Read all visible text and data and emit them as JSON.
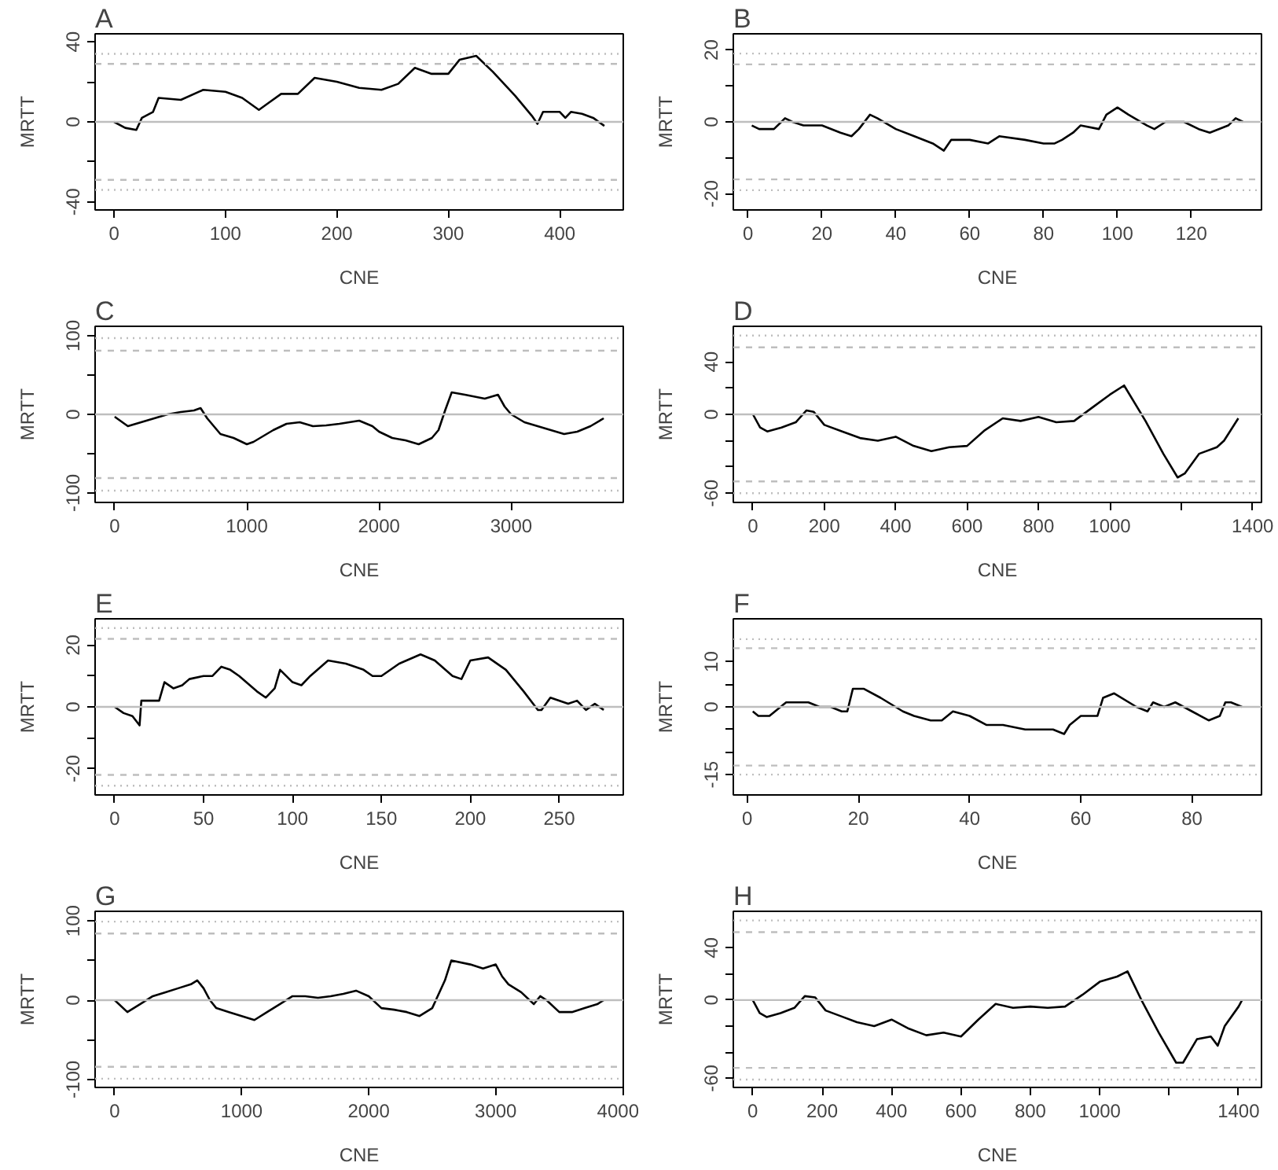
{
  "chart_data": [
    {
      "type": "line",
      "title": "A",
      "xlabel": "CNE",
      "ylabel": "MRTT",
      "xlim": [
        -17,
        457
      ],
      "ylim": [
        -44,
        44
      ],
      "xticks": [
        0,
        100,
        200,
        300,
        400
      ],
      "yticks": [
        -40,
        {
          "value": -20,
          "label": null
        },
        0,
        {
          "value": 20,
          "label": null
        },
        40
      ],
      "grid": false,
      "series": [
        {
          "color": "#000000",
          "x": [
            0,
            10,
            20,
            25,
            35,
            40,
            60,
            80,
            100,
            115,
            130,
            140,
            150,
            165,
            180,
            200,
            220,
            240,
            255,
            270,
            285,
            300,
            310,
            325,
            340,
            360,
            375,
            380,
            385,
            400,
            405,
            410,
            420,
            430,
            440
          ],
          "values": [
            0,
            -3,
            -4,
            2,
            5,
            12,
            11,
            16,
            15,
            12,
            6,
            10,
            14,
            14,
            22,
            20,
            17,
            16,
            19,
            27,
            24,
            24,
            31,
            33,
            25,
            13,
            3,
            -1,
            5,
            5,
            2,
            5,
            4,
            2,
            -2
          ]
        }
      ],
      "ref_lines": [
        {
          "axis": "y",
          "value": 0,
          "color": "#bebebe",
          "line_style": "solid"
        },
        {
          "axis": "y",
          "value": 29,
          "color": "#bebebe",
          "line_style": "dashed"
        },
        {
          "axis": "y",
          "value": -29,
          "color": "#bebebe",
          "line_style": "dashed"
        },
        {
          "axis": "y",
          "value": 34,
          "color": "#bebebe",
          "line_style": "dotted"
        },
        {
          "axis": "y",
          "value": -34,
          "color": "#bebebe",
          "line_style": "dotted"
        }
      ]
    },
    {
      "type": "line",
      "title": "B",
      "xlabel": "CNE",
      "ylabel": "MRTT",
      "xlim": [
        -4,
        139
      ],
      "ylim": [
        -24.5,
        24.5
      ],
      "xticks": [
        0,
        20,
        40,
        60,
        80,
        100,
        120
      ],
      "yticks": [
        -20,
        {
          "value": -10,
          "label": null
        },
        0,
        {
          "value": 10,
          "label": null
        },
        20
      ],
      "grid": false,
      "series": [
        {
          "color": "#000000",
          "x": [
            1,
            3,
            7,
            9,
            10,
            12,
            15,
            20,
            25,
            28,
            30,
            33,
            35,
            40,
            45,
            50,
            53,
            55,
            60,
            65,
            68,
            75,
            80,
            83,
            85,
            88,
            90,
            95,
            97,
            100,
            103,
            108,
            110,
            113,
            118,
            122,
            125,
            130,
            132,
            134
          ],
          "values": [
            -1,
            -2,
            -2,
            0,
            1,
            0,
            -1,
            -1,
            -3,
            -4,
            -2,
            2,
            1,
            -2,
            -4,
            -6,
            -8,
            -5,
            -5,
            -6,
            -4,
            -5,
            -6,
            -6,
            -5,
            -3,
            -1,
            -2,
            2,
            4,
            2,
            -1,
            -2,
            0,
            0,
            -2,
            -3,
            -1,
            1,
            0
          ]
        }
      ],
      "ref_lines": [
        {
          "axis": "y",
          "value": 0,
          "color": "#bebebe",
          "line_style": "solid"
        },
        {
          "axis": "y",
          "value": 16,
          "color": "#bebebe",
          "line_style": "dashed"
        },
        {
          "axis": "y",
          "value": -16,
          "color": "#bebebe",
          "line_style": "dashed"
        },
        {
          "axis": "y",
          "value": 19,
          "color": "#bebebe",
          "line_style": "dotted"
        },
        {
          "axis": "y",
          "value": -19,
          "color": "#bebebe",
          "line_style": "dotted"
        }
      ]
    },
    {
      "type": "line",
      "title": "C",
      "xlabel": "CNE",
      "ylabel": "MRTT",
      "xlim": [
        -148,
        3848
      ],
      "ylim": [
        -112,
        112
      ],
      "xticks": [
        0,
        1000,
        2000,
        3000
      ],
      "yticks": [
        -100,
        {
          "value": -50,
          "label": null
        },
        0,
        {
          "value": 50,
          "label": null
        },
        100
      ],
      "grid": false,
      "series": [
        {
          "color": "#000000",
          "x": [
            0,
            100,
            200,
            300,
            400,
            500,
            600,
            650,
            700,
            800,
            900,
            1000,
            1050,
            1100,
            1200,
            1300,
            1400,
            1500,
            1600,
            1700,
            1850,
            1950,
            2000,
            2100,
            2200,
            2300,
            2400,
            2450,
            2500,
            2550,
            2650,
            2800,
            2900,
            2950,
            3000,
            3100,
            3200,
            3300,
            3400,
            3500,
            3600,
            3700
          ],
          "values": [
            -3,
            -15,
            -10,
            -5,
            0,
            3,
            5,
            8,
            -5,
            -25,
            -30,
            -38,
            -35,
            -30,
            -20,
            -12,
            -10,
            -15,
            -14,
            -12,
            -8,
            -15,
            -22,
            -30,
            -33,
            -38,
            -30,
            -20,
            5,
            28,
            25,
            20,
            25,
            10,
            0,
            -10,
            -15,
            -20,
            -25,
            -22,
            -15,
            -5
          ]
        }
      ],
      "ref_lines": [
        {
          "axis": "y",
          "value": 0,
          "color": "#bebebe",
          "line_style": "solid"
        },
        {
          "axis": "y",
          "value": 81,
          "color": "#bebebe",
          "line_style": "dashed"
        },
        {
          "axis": "y",
          "value": -81,
          "color": "#bebebe",
          "line_style": "dashed"
        },
        {
          "axis": "y",
          "value": 97,
          "color": "#bebebe",
          "line_style": "dotted"
        },
        {
          "axis": "y",
          "value": -97,
          "color": "#bebebe",
          "line_style": "dotted"
        }
      ]
    },
    {
      "type": "line",
      "title": "D",
      "xlabel": "CNE",
      "ylabel": "MRTT",
      "xlim": [
        -55,
        1425
      ],
      "ylim": [
        -67,
        67
      ],
      "xticks": [
        0,
        200,
        400,
        600,
        800,
        1000,
        {
          "value": 1200,
          "label": null
        },
        1400
      ],
      "yticks": [
        -60,
        {
          "value": -40,
          "label": null
        },
        {
          "value": -20,
          "label": null
        },
        0,
        {
          "value": 20,
          "label": null
        },
        40
      ],
      "grid": false,
      "series": [
        {
          "color": "#000000",
          "x": [
            0,
            20,
            40,
            80,
            120,
            150,
            170,
            200,
            250,
            300,
            350,
            400,
            450,
            500,
            550,
            600,
            650,
            700,
            750,
            800,
            850,
            900,
            950,
            1000,
            1040,
            1100,
            1150,
            1190,
            1210,
            1250,
            1300,
            1320,
            1360
          ],
          "values": [
            0,
            -10,
            -13,
            -10,
            -6,
            3,
            2,
            -8,
            -13,
            -18,
            -20,
            -17,
            -24,
            -28,
            -25,
            -24,
            -12,
            -3,
            -5,
            -2,
            -6,
            -5,
            5,
            15,
            22,
            -5,
            -30,
            -48,
            -45,
            -30,
            -25,
            -20,
            -3
          ]
        }
      ],
      "ref_lines": [
        {
          "axis": "y",
          "value": 0,
          "color": "#bebebe",
          "line_style": "solid"
        },
        {
          "axis": "y",
          "value": 51,
          "color": "#bebebe",
          "line_style": "dashed"
        },
        {
          "axis": "y",
          "value": -51,
          "color": "#bebebe",
          "line_style": "dashed"
        },
        {
          "axis": "y",
          "value": 60,
          "color": "#bebebe",
          "line_style": "dotted"
        },
        {
          "axis": "y",
          "value": -60,
          "color": "#bebebe",
          "line_style": "dotted"
        }
      ]
    },
    {
      "type": "line",
      "title": "E",
      "xlabel": "CNE",
      "ylabel": "MRTT",
      "xlim": [
        -11,
        286
      ],
      "ylim": [
        -28.5,
        28.5
      ],
      "xticks": [
        0,
        50,
        100,
        150,
        200,
        250
      ],
      "yticks": [
        -20,
        {
          "value": -10,
          "label": null
        },
        0,
        {
          "value": 10,
          "label": null
        },
        20
      ],
      "grid": false,
      "series": [
        {
          "color": "#000000",
          "x": [
            0,
            5,
            10,
            14,
            15,
            20,
            25,
            28,
            33,
            38,
            42,
            50,
            55,
            60,
            65,
            70,
            80,
            85,
            90,
            93,
            100,
            105,
            110,
            120,
            130,
            140,
            145,
            150,
            160,
            172,
            180,
            190,
            195,
            200,
            210,
            220,
            230,
            238,
            240,
            245,
            255,
            260,
            265,
            270,
            275
          ],
          "values": [
            0,
            -2,
            -3,
            -6,
            2,
            2,
            2,
            8,
            6,
            7,
            9,
            10,
            10,
            13,
            12,
            10,
            5,
            3,
            6,
            12,
            8,
            7,
            10,
            15,
            14,
            12,
            10,
            10,
            14,
            17,
            15,
            10,
            9,
            15,
            16,
            12,
            5,
            -1,
            -1,
            3,
            1,
            2,
            -1,
            1,
            -1
          ]
        }
      ],
      "ref_lines": [
        {
          "axis": "y",
          "value": 0,
          "color": "#bebebe",
          "line_style": "solid"
        },
        {
          "axis": "y",
          "value": 22,
          "color": "#bebebe",
          "line_style": "dashed"
        },
        {
          "axis": "y",
          "value": -22,
          "color": "#bebebe",
          "line_style": "dashed"
        },
        {
          "axis": "y",
          "value": 25.5,
          "color": "#bebebe",
          "line_style": "dotted"
        },
        {
          "axis": "y",
          "value": -25.5,
          "color": "#bebebe",
          "line_style": "dotted"
        }
      ]
    },
    {
      "type": "line",
      "title": "F",
      "xlabel": "CNE",
      "ylabel": "MRTT",
      "xlim": [
        -2.5,
        92.5
      ],
      "ylim": [
        -19.5,
        19.5
      ],
      "xticks": [
        0,
        20,
        40,
        60,
        80
      ],
      "yticks": [
        -15,
        {
          "value": -10,
          "label": null
        },
        {
          "value": -5,
          "label": null
        },
        0,
        {
          "value": 5,
          "label": null
        },
        10
      ],
      "grid": false,
      "series": [
        {
          "color": "#000000",
          "x": [
            1,
            2,
            4,
            5,
            7,
            9,
            11,
            13,
            15,
            17,
            18,
            19,
            21,
            24,
            28,
            30,
            33,
            35,
            37,
            40,
            43,
            46,
            50,
            55,
            57,
            58,
            60,
            63,
            64,
            66,
            70,
            72,
            73,
            75,
            77,
            80,
            83,
            85,
            86,
            87,
            89
          ],
          "values": [
            -1,
            -2,
            -2,
            -1,
            1,
            1,
            1,
            0,
            0,
            -1,
            -1,
            4,
            4,
            2,
            -1,
            -2,
            -3,
            -3,
            -1,
            -2,
            -4,
            -4,
            -5,
            -5,
            -6,
            -4,
            -2,
            -2,
            2,
            3,
            0,
            -1,
            1,
            0,
            1,
            -1,
            -3,
            -2,
            1,
            1,
            0
          ]
        }
      ],
      "ref_lines": [
        {
          "axis": "y",
          "value": 0,
          "color": "#bebebe",
          "line_style": "solid"
        },
        {
          "axis": "y",
          "value": 13,
          "color": "#bebebe",
          "line_style": "dashed"
        },
        {
          "axis": "y",
          "value": -13,
          "color": "#bebebe",
          "line_style": "dashed"
        },
        {
          "axis": "y",
          "value": 15,
          "color": "#bebebe",
          "line_style": "dotted"
        },
        {
          "axis": "y",
          "value": -15,
          "color": "#bebebe",
          "line_style": "dotted"
        }
      ]
    },
    {
      "type": "line",
      "title": "G",
      "xlabel": "CNE",
      "ylabel": "MRTT",
      "xlim": [
        -154,
        4004
      ],
      "ylim": [
        -110,
        112
      ],
      "xticks": [
        0,
        1000,
        2000,
        3000,
        4000
      ],
      "yticks": [
        -100,
        {
          "value": -50,
          "label": null
        },
        0,
        {
          "value": 50,
          "label": null
        },
        100
      ],
      "grid": false,
      "series": [
        {
          "color": "#000000",
          "x": [
            0,
            100,
            200,
            300,
            400,
            500,
            600,
            650,
            700,
            750,
            800,
            900,
            1000,
            1100,
            1200,
            1300,
            1400,
            1500,
            1600,
            1700,
            1800,
            1900,
            2000,
            2100,
            2200,
            2300,
            2400,
            2500,
            2600,
            2650,
            2800,
            2900,
            3000,
            3050,
            3100,
            3200,
            3300,
            3350,
            3400,
            3500,
            3600,
            3700,
            3800,
            3850
          ],
          "values": [
            0,
            -15,
            -5,
            5,
            10,
            15,
            20,
            25,
            15,
            0,
            -10,
            -15,
            -20,
            -25,
            -15,
            -5,
            5,
            5,
            3,
            5,
            8,
            12,
            5,
            -10,
            -12,
            -15,
            -20,
            -10,
            25,
            50,
            45,
            40,
            45,
            30,
            20,
            10,
            -5,
            5,
            0,
            -15,
            -15,
            -10,
            -5,
            0
          ]
        }
      ],
      "ref_lines": [
        {
          "axis": "y",
          "value": 0,
          "color": "#bebebe",
          "line_style": "solid"
        },
        {
          "axis": "y",
          "value": 84,
          "color": "#bebebe",
          "line_style": "dashed"
        },
        {
          "axis": "y",
          "value": -84,
          "color": "#bebebe",
          "line_style": "dashed"
        },
        {
          "axis": "y",
          "value": 99,
          "color": "#bebebe",
          "line_style": "dotted"
        },
        {
          "axis": "y",
          "value": -99,
          "color": "#bebebe",
          "line_style": "dotted"
        }
      ]
    },
    {
      "type": "line",
      "title": "H",
      "xlabel": "CNE",
      "ylabel": "MRTT",
      "xlim": [
        -56,
        1466
      ],
      "ylim": [
        -67,
        68
      ],
      "xticks": [
        0,
        200,
        400,
        600,
        800,
        1000,
        {
          "value": 1200,
          "label": null
        },
        1400
      ],
      "yticks": [
        -60,
        {
          "value": -40,
          "label": null
        },
        {
          "value": -20,
          "label": null
        },
        0,
        {
          "value": 20,
          "label": null
        },
        40
      ],
      "grid": false,
      "series": [
        {
          "color": "#000000",
          "x": [
            0,
            20,
            40,
            80,
            120,
            150,
            180,
            210,
            260,
            300,
            350,
            400,
            450,
            500,
            550,
            600,
            650,
            700,
            750,
            800,
            850,
            900,
            950,
            1000,
            1050,
            1080,
            1120,
            1170,
            1220,
            1240,
            1280,
            1320,
            1340,
            1360,
            1400,
            1410
          ],
          "values": [
            0,
            -10,
            -13,
            -10,
            -6,
            3,
            2,
            -8,
            -13,
            -17,
            -20,
            -15,
            -22,
            -27,
            -25,
            -28,
            -15,
            -3,
            -6,
            -5,
            -6,
            -5,
            4,
            14,
            18,
            22,
            0,
            -25,
            -48,
            -48,
            -30,
            -28,
            -35,
            -20,
            -5,
            0
          ]
        }
      ],
      "ref_lines": [
        {
          "axis": "y",
          "value": 0,
          "color": "#bebebe",
          "line_style": "solid"
        },
        {
          "axis": "y",
          "value": 52,
          "color": "#bebebe",
          "line_style": "dashed"
        },
        {
          "axis": "y",
          "value": -52,
          "color": "#bebebe",
          "line_style": "dashed"
        },
        {
          "axis": "y",
          "value": 61,
          "color": "#bebebe",
          "line_style": "dotted"
        },
        {
          "axis": "y",
          "value": -61,
          "color": "#bebebe",
          "line_style": "dotted"
        }
      ]
    }
  ]
}
